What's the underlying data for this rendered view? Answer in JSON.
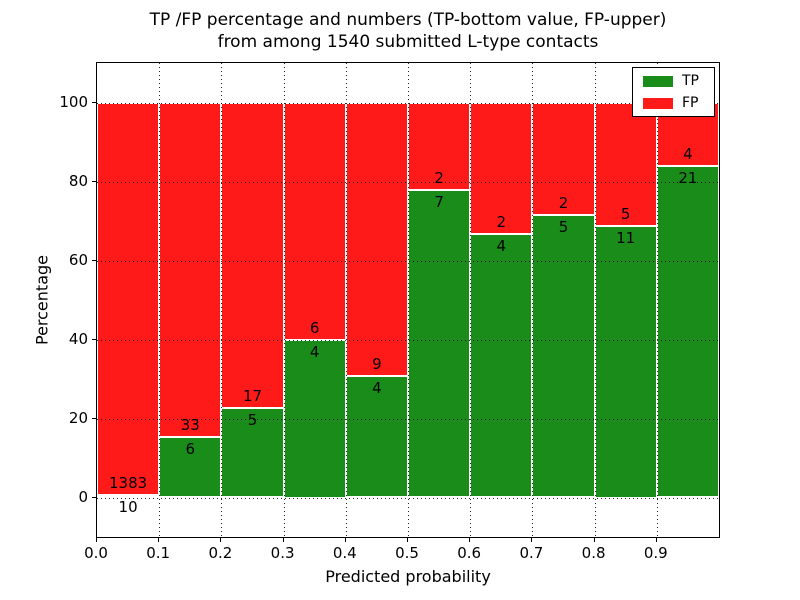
{
  "title": {
    "line1": "TP /FP percentage and numbers (TP-bottom value, FP-upper)",
    "line2": "from among 1540 submitted L-type contacts"
  },
  "axes": {
    "xlabel": "Predicted probability",
    "ylabel": "Percentage",
    "xticks": [
      {
        "v": 0.0,
        "label": "0.0"
      },
      {
        "v": 0.1,
        "label": "0.1"
      },
      {
        "v": 0.2,
        "label": "0.2"
      },
      {
        "v": 0.3,
        "label": "0.3"
      },
      {
        "v": 0.4,
        "label": "0.4"
      },
      {
        "v": 0.5,
        "label": "0.5"
      },
      {
        "v": 0.6,
        "label": "0.6"
      },
      {
        "v": 0.7,
        "label": "0.7"
      },
      {
        "v": 0.8,
        "label": "0.8"
      },
      {
        "v": 0.9,
        "label": "0.9"
      }
    ],
    "yticks": [
      {
        "v": 0,
        "label": "0"
      },
      {
        "v": 20,
        "label": "20"
      },
      {
        "v": 40,
        "label": "40"
      },
      {
        "v": 60,
        "label": "60"
      },
      {
        "v": 80,
        "label": "80"
      },
      {
        "v": 100,
        "label": "100"
      }
    ]
  },
  "legend": {
    "items": [
      {
        "label": "TP",
        "color": "#1a8c1a"
      },
      {
        "label": "FP",
        "color": "#ff1a1a"
      }
    ]
  },
  "chart_data": {
    "type": "bar",
    "stacked": true,
    "title": "TP /FP percentage and numbers (TP-bottom value, FP-upper) from among 1540 submitted L-type contacts",
    "xlabel": "Predicted probability",
    "ylabel": "Percentage",
    "total_contacts": 1540,
    "x": [
      0.0,
      0.1,
      0.2,
      0.3,
      0.4,
      0.5,
      0.6,
      0.7,
      0.8,
      0.9
    ],
    "bin_width": 0.1,
    "series": [
      {
        "name": "TP",
        "color": "#1a8c1a",
        "counts": [
          10,
          6,
          5,
          4,
          4,
          7,
          4,
          5,
          11,
          21
        ]
      },
      {
        "name": "FP",
        "color": "#ff1a1a",
        "counts": [
          1383,
          33,
          17,
          6,
          9,
          2,
          2,
          2,
          5,
          4
        ]
      }
    ],
    "tp_percent_of_bin": [
      0.72,
      15.38,
      22.73,
      40.0,
      30.77,
      77.78,
      66.67,
      71.43,
      68.75,
      84.0
    ],
    "bars_stack_to": 100,
    "xlim": [
      0.0,
      1.0
    ],
    "ylim": [
      -10,
      110
    ],
    "grid": true,
    "legend_position": "upper right"
  }
}
